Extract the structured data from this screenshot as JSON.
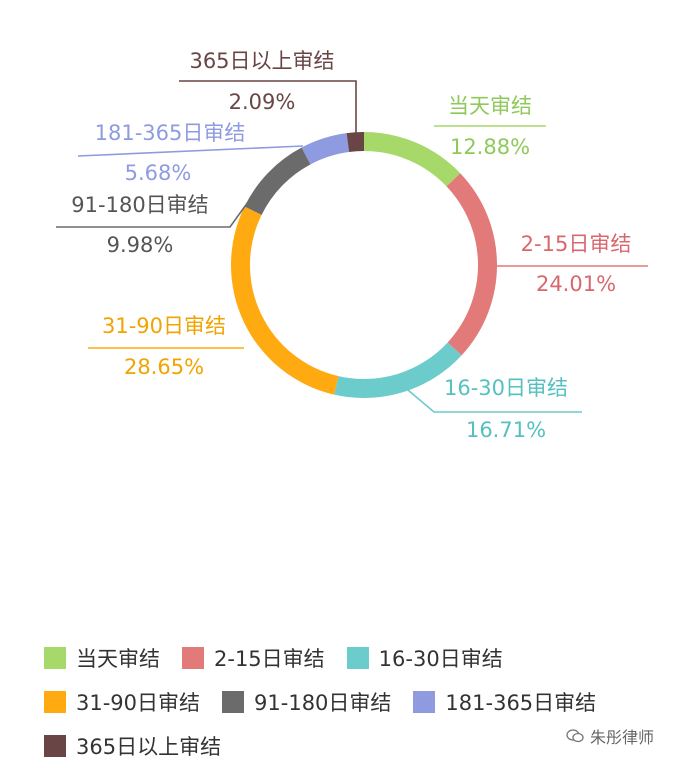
{
  "chart_data": {
    "type": "pie",
    "style": "donut",
    "categories": [
      "当天审结",
      "2-15日审结",
      "16-30日审结",
      "31-90日审结",
      "91-180日审结",
      "181-365日审结",
      "365日以上审结"
    ],
    "values": [
      12.88,
      24.01,
      16.71,
      28.65,
      9.98,
      5.68,
      2.09
    ],
    "value_labels": [
      "12.88%",
      "24.01%",
      "16.71%",
      "28.65%",
      "9.98%",
      "5.68%",
      "2.09%"
    ],
    "colors": [
      "#a6d96a",
      "#e27a7a",
      "#6ccbcb",
      "#ffaa11",
      "#6b6b6b",
      "#8f9be0",
      "#6a4545"
    ],
    "label_colors": [
      "#8fc95a",
      "#d9686e",
      "#55c0c0",
      "#f0a400",
      "#555555",
      "#8f9be0",
      "#6a4545"
    ],
    "legend_placement": "bottom"
  },
  "legend": {
    "items": [
      "当天审结",
      "2-15日审结",
      "16-30日审结",
      "31-90日审结",
      "91-180日审结",
      "181-365日审结",
      "365日以上审结"
    ]
  },
  "watermark": {
    "text": "朱彤律师",
    "icon": "wechat-icon"
  }
}
